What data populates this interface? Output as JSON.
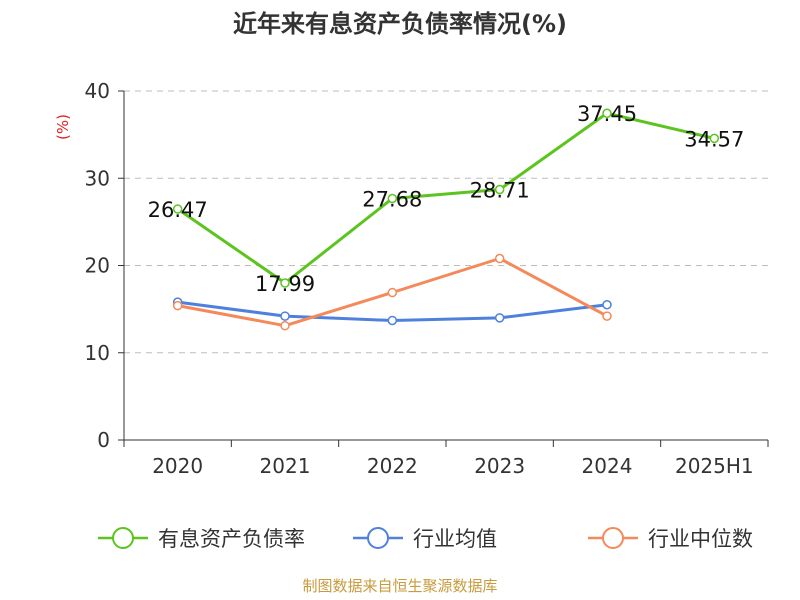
{
  "chart_data": {
    "type": "line",
    "title": "近年来有息资产负债率情况(%)",
    "ylabel": "(%)",
    "xlabel": "",
    "categories": [
      "2020",
      "2021",
      "2022",
      "2023",
      "2024",
      "2025H1"
    ],
    "ylim": [
      0,
      40
    ],
    "yticks": [
      "0",
      "10",
      "20",
      "30",
      "40"
    ],
    "grid": true,
    "legend_position": "bottom",
    "series": [
      {
        "name": "有息资产负债率",
        "color": "#5cc41f",
        "values": [
          26.47,
          17.99,
          27.68,
          28.71,
          37.45,
          34.57
        ],
        "labels": [
          "26.47",
          "17.99",
          "27.68",
          "28.71",
          "37.45",
          "34.57"
        ]
      },
      {
        "name": "行业均值",
        "color": "#4f81dc",
        "values": [
          15.8,
          14.2,
          13.7,
          14.0,
          15.5,
          null
        ]
      },
      {
        "name": "行业中位数",
        "color": "#f4895a",
        "values": [
          15.4,
          13.1,
          16.9,
          20.8,
          14.2,
          null
        ]
      }
    ]
  },
  "source": "制图数据来自恒生聚源数据库"
}
